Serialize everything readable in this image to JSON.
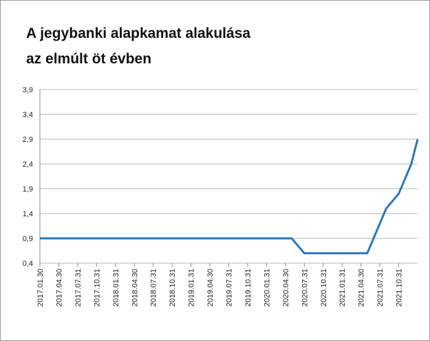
{
  "chart_data": {
    "type": "line",
    "title": [
      "A jegybanki alapkamat alakulása",
      "az elmúlt öt évben"
    ],
    "categories": [
      "2017.01.30",
      null,
      null,
      "2017.04.30",
      null,
      null,
      "2017.07.31",
      null,
      null,
      "2017.10.31",
      null,
      null,
      "2018.01.31",
      null,
      null,
      "2018.04.30",
      null,
      null,
      "2018.07.31",
      null,
      null,
      "2018.10.31",
      null,
      null,
      "2019.01.31",
      null,
      null,
      "2019.04.30",
      null,
      null,
      "2019.07.31",
      null,
      null,
      "2019.10.31",
      null,
      null,
      "2020.01.31",
      null,
      null,
      "2020.04.30",
      null,
      null,
      "2020.07.31",
      null,
      null,
      "2020.10.31",
      null,
      null,
      "2021.01.31",
      null,
      null,
      "2021.04.30",
      null,
      null,
      "2021.07.31",
      null,
      null,
      "2021.10.31",
      null,
      null,
      null
    ],
    "series": [
      {
        "color": "#2e75b6",
        "values": [
          0.9,
          0.9,
          0.9,
          0.9,
          0.9,
          0.9,
          0.9,
          0.9,
          0.9,
          0.9,
          0.9,
          0.9,
          0.9,
          0.9,
          0.9,
          0.9,
          0.9,
          0.9,
          0.9,
          0.9,
          0.9,
          0.9,
          0.9,
          0.9,
          0.9,
          0.9,
          0.9,
          0.9,
          0.9,
          0.9,
          0.9,
          0.9,
          0.9,
          0.9,
          0.9,
          0.9,
          0.9,
          0.9,
          0.9,
          0.9,
          0.9,
          0.75,
          0.6,
          0.6,
          0.6,
          0.6,
          0.6,
          0.6,
          0.6,
          0.6,
          0.6,
          0.6,
          0.6,
          0.9,
          1.2,
          1.5,
          1.65,
          1.8,
          2.1,
          2.4,
          2.9
        ]
      }
    ],
    "ylim": [
      0.4,
      3.9
    ],
    "yticks": [
      {
        "value": 0.4,
        "label": "0,4"
      },
      {
        "value": 0.9,
        "label": "0,9"
      },
      {
        "value": 1.4,
        "label": "1,4"
      },
      {
        "value": 1.9,
        "label": "1,9"
      },
      {
        "value": 2.4,
        "label": "2,4"
      },
      {
        "value": 2.9,
        "label": "2,9"
      },
      {
        "value": 3.4,
        "label": "3,4"
      },
      {
        "value": 3.9,
        "label": "3,9"
      }
    ],
    "grid": true
  }
}
